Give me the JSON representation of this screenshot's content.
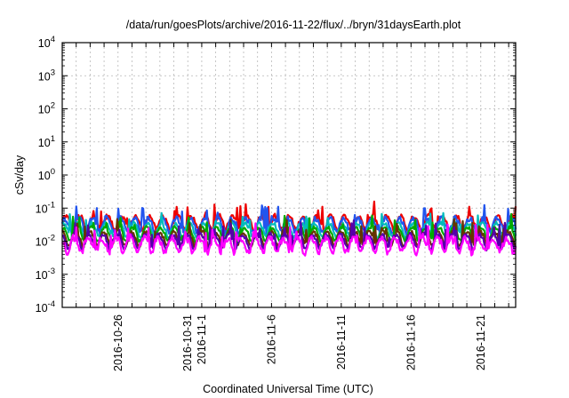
{
  "chart_data": {
    "type": "line",
    "title": "/data/run/goesPlots/archive/2016-11-22/flux/../bryn/31daysEarth.plot",
    "xlabel": "Coordinated Universal Time (UTC)",
    "ylabel": "cSv/day",
    "yscale": "log",
    "ylim": [
      0.0001,
      10000
    ],
    "xlim": [
      "2016-10-22",
      "2016-11-23T12:00"
    ],
    "y_ticks": [
      {
        "base": "10",
        "exp": "-4",
        "value": 0.0001
      },
      {
        "base": "10",
        "exp": "-3",
        "value": 0.001
      },
      {
        "base": "10",
        "exp": "-2",
        "value": 0.01
      },
      {
        "base": "10",
        "exp": "-1",
        "value": 0.1
      },
      {
        "base": "10",
        "exp": "0",
        "value": 1
      },
      {
        "base": "10",
        "exp": "1",
        "value": 10
      },
      {
        "base": "10",
        "exp": "2",
        "value": 100
      },
      {
        "base": "10",
        "exp": "3",
        "value": 1000
      },
      {
        "base": "10",
        "exp": "4",
        "value": 10000
      }
    ],
    "x_tick_labels": [
      {
        "label": "2016-10-26",
        "date": "2016-10-26"
      },
      {
        "label": "2016-10-31",
        "date": "2016-10-31"
      },
      {
        "label": "2016-11-1",
        "date": "2016-11-01"
      },
      {
        "label": "2016-11-6",
        "date": "2016-11-06"
      },
      {
        "label": "2016-11-11",
        "date": "2016-11-11"
      },
      {
        "label": "2016-11-16",
        "date": "2016-11-16"
      },
      {
        "label": "2016-11-21",
        "date": "2016-11-21"
      }
    ],
    "grid": true,
    "legend": "none",
    "series": [
      {
        "color": "#ee0000",
        "base": 0.04,
        "spread": 0.18,
        "spike": 0.1
      },
      {
        "color": "#2255ee",
        "base": 0.034,
        "spread": 0.2,
        "spike": 0.09
      },
      {
        "color": "#00bbbb",
        "base": 0.024,
        "spread": 0.14,
        "spike": 0.05
      },
      {
        "color": "#00aa00",
        "base": 0.018,
        "spread": 0.12,
        "spike": 0.04
      },
      {
        "color": "#663300",
        "base": 0.013,
        "spread": 0.14,
        "spike": 0.03
      },
      {
        "color": "#5500aa",
        "base": 0.011,
        "spread": 0.14,
        "spike": 0.025
      },
      {
        "color": "#ff00ff",
        "base": 0.0085,
        "spread": 0.24,
        "spike": 0.025
      }
    ]
  }
}
